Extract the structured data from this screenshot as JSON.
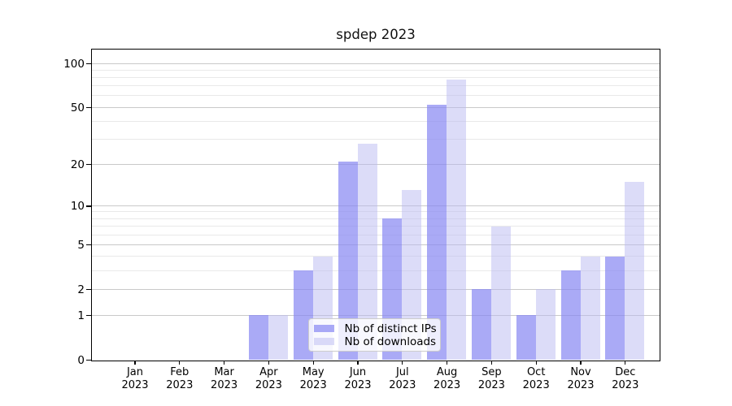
{
  "figure": {
    "title": "spdep 2023"
  },
  "chart_data": {
    "type": "bar",
    "title": "spdep 2023",
    "categories": [
      "Jan 2023",
      "Feb 2023",
      "Mar 2023",
      "Apr 2023",
      "May 2023",
      "Jun 2023",
      "Jul 2023",
      "Aug 2023",
      "Sep 2023",
      "Oct 2023",
      "Nov 2023",
      "Dec 2023"
    ],
    "series": [
      {
        "name": "Nb of distinct IPs",
        "color": "#8686f2",
        "alpha": 0.7,
        "values": [
          0,
          0,
          0,
          1,
          3,
          21,
          8,
          52,
          2,
          1,
          3,
          4
        ]
      },
      {
        "name": "Nb of downloads",
        "color": "#b9b9f2",
        "alpha": 0.5,
        "values": [
          0,
          0,
          0,
          1,
          4,
          28,
          13,
          77,
          7,
          2,
          4,
          15
        ]
      }
    ],
    "xlabel": "",
    "ylabel": "",
    "yscale": "log1p",
    "ylim": [
      0,
      126
    ],
    "yticks": [
      100,
      50,
      20,
      10,
      5,
      2,
      1,
      0
    ],
    "ytick_labels": [
      "100",
      "50",
      "20",
      "10",
      "5",
      "2",
      "1",
      "0"
    ],
    "minor_gridlines": [
      3,
      4,
      6,
      7,
      8,
      9,
      30,
      40,
      60,
      70,
      80,
      90
    ],
    "grid": true,
    "legend_position": "lower center",
    "colors": {
      "bar_distinct_ips_rendered": "#aaaaf6",
      "bar_downloads_rendered": "#dcdcf8",
      "major_grid": "#c9c9c9",
      "minor_grid": "#e9e9e9",
      "axis": "#000000"
    }
  }
}
